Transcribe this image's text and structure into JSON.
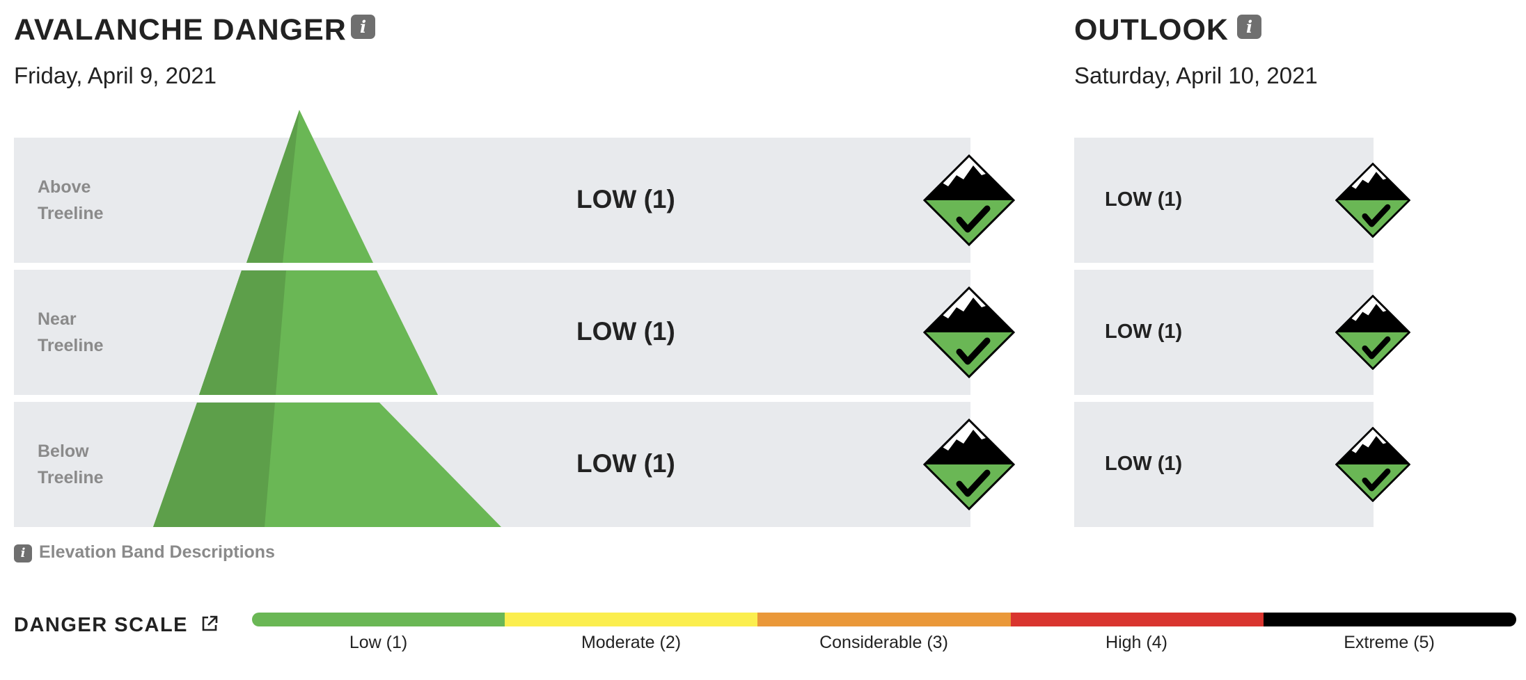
{
  "danger": {
    "title": "AVALANCHE DANGER",
    "info_icon": "info-icon",
    "date": "Friday, April 9, 2021",
    "bands": [
      {
        "label_line1": "Above",
        "label_line2": "Treeline",
        "rating": "LOW (1)"
      },
      {
        "label_line1": "Near",
        "label_line2": "Treeline",
        "rating": "LOW (1)"
      },
      {
        "label_line1": "Below",
        "label_line2": "Treeline",
        "rating": "LOW (1)"
      }
    ]
  },
  "outlook": {
    "title": "OUTLOOK",
    "info_icon": "info-icon",
    "date": "Saturday, April 10, 2021",
    "bands": [
      {
        "rating": "LOW (1)"
      },
      {
        "rating": "LOW (1)"
      },
      {
        "rating": "LOW (1)"
      }
    ]
  },
  "elevation_info": {
    "icon": "info-icon",
    "info_glyph": "i",
    "label": "Elevation Band Descriptions"
  },
  "scale": {
    "title": "DANGER SCALE",
    "link_icon": "external-link-icon",
    "levels": [
      {
        "label": "Low (1)",
        "color": "#6ab755"
      },
      {
        "label": "Moderate (2)",
        "color": "#fbee4e"
      },
      {
        "label": "Considerable (3)",
        "color": "#ea9839"
      },
      {
        "label": "High (4)",
        "color": "#d9352f"
      },
      {
        "label": "Extreme (5)",
        "color": "#000000"
      }
    ]
  },
  "colors": {
    "low_green": "#6ab755",
    "pyramid_shade": "#5d9f4a",
    "band_bg": "#e8eaed"
  }
}
